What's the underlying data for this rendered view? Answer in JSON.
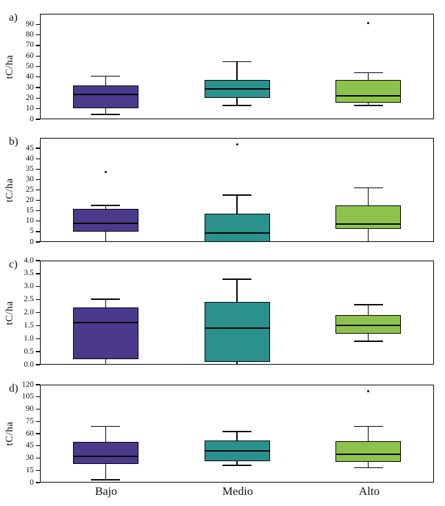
{
  "figure": {
    "categories": [
      "Bajo",
      "Medio",
      "Alto"
    ],
    "box_colors": [
      "#4B3A8C",
      "#2A918C",
      "#8DC34C"
    ],
    "axis_color": "#000000",
    "background_color": "#ffffff"
  },
  "chart_data": [
    {
      "type": "box",
      "panel_label": "a)",
      "ylabel": "tC/ha",
      "ylim": [
        0,
        100
      ],
      "grid": false,
      "tick_values": [
        0,
        10,
        20,
        30,
        40,
        50,
        60,
        70,
        80,
        90
      ],
      "tick_labels": [
        "0",
        "10",
        "20",
        "30",
        "40",
        "50",
        "60",
        "70",
        "80",
        "90"
      ],
      "categories": [
        "Bajo",
        "Medio",
        "Alto"
      ],
      "boxes": [
        {
          "category": "Bajo",
          "whisker_low": 4.5,
          "q1": 10.5,
          "median": 23.5,
          "q3": 32,
          "whisker_high": 41,
          "low_cap": true,
          "outliers": []
        },
        {
          "category": "Medio",
          "whisker_low": 13,
          "q1": 20,
          "median": 29,
          "q3": 37,
          "whisker_high": 54.5,
          "low_cap": true,
          "outliers": []
        },
        {
          "category": "Alto",
          "whisker_low": 13,
          "q1": 15.5,
          "median": 22,
          "q3": 37.5,
          "whisker_high": 44,
          "low_cap": true,
          "outliers": [
            91
          ]
        }
      ]
    },
    {
      "type": "box",
      "panel_label": "b)",
      "ylabel": "tC/ha",
      "ylim": [
        0,
        50
      ],
      "grid": false,
      "tick_values": [
        0,
        5,
        10,
        15,
        20,
        25,
        30,
        35,
        40,
        45
      ],
      "tick_labels": [
        "0",
        "5",
        "10",
        "15",
        "20",
        "25",
        "30",
        "35",
        "40",
        "45"
      ],
      "categories": [
        "Bajo",
        "Medio",
        "Alto"
      ],
      "boxes": [
        {
          "category": "Bajo",
          "whisker_low": 0,
          "q1": 5,
          "median": 9,
          "q3": 16,
          "whisker_high": 17.5,
          "low_cap": false,
          "outliers": [
            33.5
          ]
        },
        {
          "category": "Medio",
          "whisker_low": 0,
          "q1": 0,
          "median": 4.3,
          "q3": 13.5,
          "whisker_high": 22.5,
          "low_cap": false,
          "outliers": [
            47
          ]
        },
        {
          "category": "Alto",
          "whisker_low": 0,
          "q1": 6.3,
          "median": 8.5,
          "q3": 17.5,
          "whisker_high": 26,
          "low_cap": false,
          "outliers": []
        }
      ]
    },
    {
      "type": "box",
      "panel_label": "c)",
      "ylabel": "tC/ha",
      "ylim": [
        0,
        4
      ],
      "grid": false,
      "tick_values": [
        0,
        0.5,
        1.0,
        1.5,
        2.0,
        2.5,
        3.0,
        3.5,
        4.0
      ],
      "tick_labels": [
        "0.0",
        "0.5",
        "1.0",
        "1.5",
        "2.0",
        "2.5",
        "3.0",
        "3.5",
        "4.0"
      ],
      "categories": [
        "Bajo",
        "Medio",
        "Alto"
      ],
      "boxes": [
        {
          "category": "Bajo",
          "whisker_low": 0.02,
          "q1": 0.2,
          "median": 1.62,
          "q3": 2.2,
          "whisker_high": 2.52,
          "low_cap": false,
          "outliers": []
        },
        {
          "category": "Medio",
          "whisker_low": 0.02,
          "q1": 0.1,
          "median": 1.4,
          "q3": 2.42,
          "whisker_high": 3.28,
          "low_cap": false,
          "outliers": []
        },
        {
          "category": "Alto",
          "whisker_low": 0.9,
          "q1": 1.2,
          "median": 1.5,
          "q3": 1.9,
          "whisker_high": 2.3,
          "low_cap": true,
          "outliers": []
        }
      ]
    },
    {
      "type": "box",
      "panel_label": "d)",
      "ylabel": "tC/ha",
      "ylim": [
        0,
        120
      ],
      "grid": false,
      "tick_values": [
        0,
        15,
        30,
        45,
        60,
        75,
        90,
        105,
        120
      ],
      "tick_labels": [
        "0",
        "15",
        "30",
        "45",
        "60",
        "75",
        "90",
        "105",
        "120"
      ],
      "categories": [
        "Bajo",
        "Medio",
        "Alto"
      ],
      "boxes": [
        {
          "category": "Bajo",
          "whisker_low": 3.5,
          "q1": 23,
          "median": 32,
          "q3": 50,
          "whisker_high": 69,
          "low_cap": true,
          "outliers": []
        },
        {
          "category": "Medio",
          "whisker_low": 21,
          "q1": 26,
          "median": 39,
          "q3": 51.5,
          "whisker_high": 62.5,
          "low_cap": true,
          "outliers": []
        },
        {
          "category": "Alto",
          "whisker_low": 18,
          "q1": 25,
          "median": 35,
          "q3": 51,
          "whisker_high": 69,
          "low_cap": true,
          "outliers": [
            112
          ]
        }
      ]
    }
  ]
}
